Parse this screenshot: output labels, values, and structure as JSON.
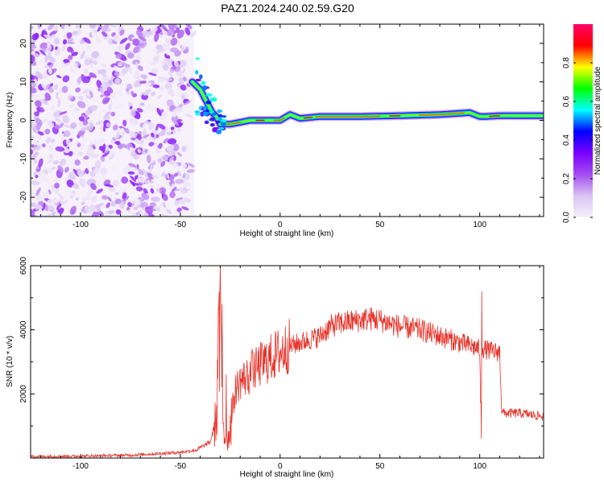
{
  "title": "PAZ1.2024.240.02.59.G20",
  "chart_data": [
    {
      "type": "heatmap",
      "xlabel": "Height of straight line (km)",
      "ylabel": "Frequency (Hz)",
      "xlim": [
        -125,
        132
      ],
      "ylim": [
        -25,
        25
      ],
      "xticks": [
        -100,
        -50,
        0,
        50,
        100
      ],
      "yticks": [
        -20,
        -10,
        0,
        10,
        20
      ],
      "colorbar": {
        "label": "Normalized spectral amplitude",
        "range": [
          0,
          1
        ],
        "ticks": [
          0.0,
          0.2,
          0.4,
          0.6,
          0.8
        ],
        "colormap": [
          "#f4f0f8",
          "#d9c4f5",
          "#a44df0",
          "#7a00ff",
          "#0000ff",
          "#00ffff",
          "#00ff00",
          "#ffff00",
          "#ff0000",
          "#ff0066"
        ]
      },
      "noise_region_x": [
        -125,
        -43
      ],
      "ridge": {
        "x": [
          -44,
          -40,
          -37,
          -34,
          -32,
          -30,
          -25,
          -15,
          -5,
          0,
          5,
          10,
          20,
          40,
          60,
          80,
          95,
          100,
          103,
          110,
          120,
          132
        ],
        "freq": [
          10,
          8,
          5,
          2,
          1,
          -1,
          -1,
          0,
          0,
          0,
          1.5,
          0.5,
          1,
          1,
          1.2,
          1.5,
          2,
          1,
          1,
          1.2,
          1.2,
          1.2
        ],
        "peak_amplitude": 0.85
      }
    },
    {
      "type": "line",
      "xlabel": "Height of straight line (km)",
      "ylabel": "SNR (10 * v/v)",
      "xlim": [
        -125,
        132
      ],
      "ylim": [
        0,
        6000
      ],
      "xticks": [
        -100,
        -50,
        0,
        50,
        100
      ],
      "yticks": [
        2000,
        4000,
        6000
      ],
      "color": "#e8332a",
      "profile": {
        "x": [
          -125,
          -100,
          -75,
          -60,
          -50,
          -42,
          -35,
          -32,
          -30,
          -29,
          -28,
          -26,
          -24,
          -22,
          -20,
          -15,
          -10,
          -5,
          0,
          5,
          10,
          20,
          25,
          30,
          40,
          45,
          50,
          60,
          70,
          80,
          90,
          95,
          100,
          100.5,
          101,
          102,
          105,
          110,
          111,
          112,
          120,
          132
        ],
        "snr": [
          50,
          60,
          90,
          140,
          180,
          250,
          500,
          1200,
          4000,
          2200,
          700,
          600,
          1500,
          2200,
          2400,
          2600,
          2900,
          3100,
          3300,
          3500,
          3600,
          3800,
          4100,
          4200,
          4300,
          4350,
          4300,
          4100,
          4000,
          3800,
          3600,
          3500,
          3400,
          1200,
          3500,
          3400,
          3350,
          3300,
          1500,
          1400,
          1400,
          1300
        ]
      },
      "spikes": [
        {
          "x": -31,
          "snr": 4600
        },
        {
          "x": -30,
          "snr": 6000
        },
        {
          "x": -29,
          "snr": 4800
        },
        {
          "x": -27,
          "snr": 2600
        },
        {
          "x": -14,
          "snr": 3400
        },
        {
          "x": 101,
          "snr": 5200
        },
        {
          "x": 100.8,
          "snr": 600
        }
      ]
    }
  ]
}
